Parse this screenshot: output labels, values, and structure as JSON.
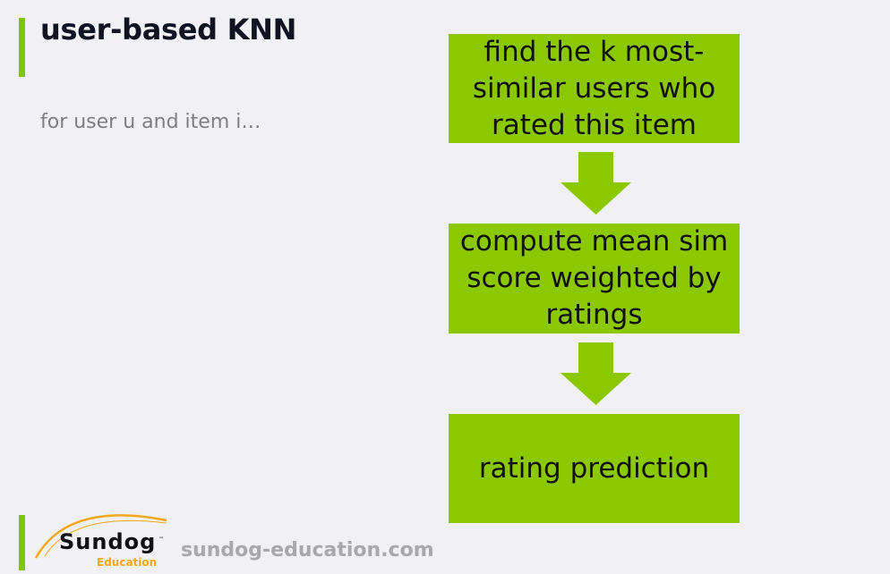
{
  "slide": {
    "title": "user-based KNN",
    "subtitle": "for user u and item i…"
  },
  "flow": {
    "steps": [
      {
        "lines": [
          "find the k most-",
          "similar users who",
          "rated this item"
        ]
      },
      {
        "lines": [
          "compute mean sim",
          "score weighted by",
          "ratings"
        ]
      },
      {
        "lines": [
          "rating prediction"
        ]
      }
    ],
    "box_color": "#8cc800",
    "arrow_color": "#8cc800",
    "arrows": [
      "arrow-down-icon",
      "arrow-down-icon"
    ]
  },
  "footer": {
    "logo_word": "Sundog",
    "logo_sub": "Education",
    "logo_tm": "™",
    "site": "sundog-education.com"
  },
  "colors": {
    "accent": "#7fc400",
    "background": "#f1f1f5",
    "logo_orange": "#f2a81d"
  }
}
